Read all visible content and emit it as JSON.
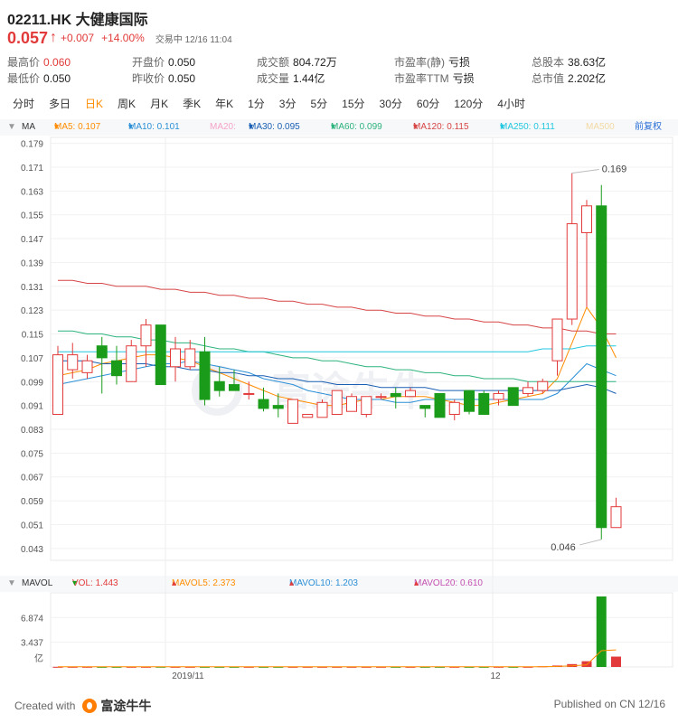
{
  "title": "02211.HK 大健康国际",
  "price": "0.057",
  "change": "+0.007",
  "change_pct": "+14.00%",
  "trade_status": "交易中 12/16 11:04",
  "colors": {
    "up": "#e23a3a",
    "down": "#1a9c1a",
    "active_tab": "#ff8c00"
  },
  "stats": {
    "high_label": "最高价",
    "high": "0.060",
    "open_label": "开盘价",
    "open": "0.050",
    "turnover_label": "成交额",
    "turnover": "804.72万",
    "pe_static_label": "市盈率(静)",
    "pe_static": "亏损",
    "shares_label": "总股本",
    "shares": "38.63亿",
    "low_label": "最低价",
    "low": "0.050",
    "prev_label": "昨收价",
    "prev": "0.050",
    "volume_label": "成交量",
    "volume": "1.44亿",
    "pe_ttm_label": "市盈率TTM",
    "pe_ttm": "亏损",
    "mktcap_label": "总市值",
    "mktcap": "2.202亿"
  },
  "tabs": [
    "分时",
    "多日",
    "日K",
    "周K",
    "月K",
    "季K",
    "年K",
    "1分",
    "3分",
    "5分",
    "15分",
    "30分",
    "60分",
    "120分",
    "4小时"
  ],
  "active_tab": "日K",
  "ma_legend": {
    "name": "MA",
    "ma5": "MA5: 0.107",
    "ma10": "MA10: 0.101",
    "ma20": "MA20:",
    "ma30": "MA30: 0.095",
    "ma60": "MA60: 0.099",
    "ma120": "MA120: 0.115",
    "ma250": "MA250: 0.111",
    "ma500": "MA500",
    "adjust": "前复权"
  },
  "vol_legend": {
    "name": "MAVOL",
    "vol": "VOL: 1.443",
    "mavol5": "MAVOL5: 2.373",
    "mavol10": "MAVOL10: 1.203",
    "mavol20": "MAVOL20: 0.610"
  },
  "watermark": "富途牛牛",
  "footer": {
    "created": "Created with",
    "logo_text": "富途牛牛",
    "published": "Published on CN 12/16"
  },
  "chart_data": {
    "type": "candlestick",
    "y_ticks": [
      "0.179",
      "0.171",
      "0.163",
      "0.155",
      "0.147",
      "0.139",
      "0.131",
      "0.123",
      "0.115",
      "0.107",
      "0.099",
      "0.091",
      "0.083",
      "0.075",
      "0.067",
      "0.059",
      "0.051",
      "0.043"
    ],
    "ylim": [
      0.039,
      0.181
    ],
    "x_labels": [
      "2019/11",
      "12"
    ],
    "max_label": "0.169",
    "min_label": "0.046",
    "candles": [
      {
        "o": 0.088,
        "h": 0.111,
        "l": 0.088,
        "c": 0.108
      },
      {
        "o": 0.103,
        "h": 0.112,
        "l": 0.1,
        "c": 0.108
      },
      {
        "o": 0.102,
        "h": 0.108,
        "l": 0.1,
        "c": 0.106
      },
      {
        "o": 0.111,
        "h": 0.114,
        "l": 0.095,
        "c": 0.107
      },
      {
        "o": 0.106,
        "h": 0.111,
        "l": 0.098,
        "c": 0.101
      },
      {
        "o": 0.099,
        "h": 0.113,
        "l": 0.099,
        "c": 0.111
      },
      {
        "o": 0.111,
        "h": 0.12,
        "l": 0.104,
        "c": 0.118
      },
      {
        "o": 0.118,
        "h": 0.118,
        "l": 0.098,
        "c": 0.098
      },
      {
        "o": 0.104,
        "h": 0.114,
        "l": 0.099,
        "c": 0.11
      },
      {
        "o": 0.104,
        "h": 0.113,
        "l": 0.103,
        "c": 0.11
      },
      {
        "o": 0.109,
        "h": 0.114,
        "l": 0.091,
        "c": 0.093
      },
      {
        "o": 0.099,
        "h": 0.104,
        "l": 0.094,
        "c": 0.096
      },
      {
        "o": 0.098,
        "h": 0.103,
        "l": 0.096,
        "c": 0.096
      },
      {
        "o": 0.095,
        "h": 0.099,
        "l": 0.093,
        "c": 0.095
      },
      {
        "o": 0.093,
        "h": 0.097,
        "l": 0.089,
        "c": 0.09
      },
      {
        "o": 0.091,
        "h": 0.095,
        "l": 0.087,
        "c": 0.09
      },
      {
        "o": 0.085,
        "h": 0.093,
        "l": 0.085,
        "c": 0.093
      },
      {
        "o": 0.087,
        "h": 0.087,
        "l": 0.087,
        "c": 0.088
      },
      {
        "o": 0.087,
        "h": 0.093,
        "l": 0.087,
        "c": 0.092
      },
      {
        "o": 0.088,
        "h": 0.096,
        "l": 0.088,
        "c": 0.096
      },
      {
        "o": 0.089,
        "h": 0.095,
        "l": 0.089,
        "c": 0.094
      },
      {
        "o": 0.088,
        "h": 0.094,
        "l": 0.087,
        "c": 0.094
      },
      {
        "o": 0.094,
        "h": 0.095,
        "l": 0.093,
        "c": 0.094
      },
      {
        "o": 0.095,
        "h": 0.097,
        "l": 0.09,
        "c": 0.094
      },
      {
        "o": 0.094,
        "h": 0.097,
        "l": 0.094,
        "c": 0.096
      },
      {
        "o": 0.091,
        "h": 0.091,
        "l": 0.087,
        "c": 0.09
      },
      {
        "o": 0.095,
        "h": 0.095,
        "l": 0.087,
        "c": 0.087
      },
      {
        "o": 0.088,
        "h": 0.093,
        "l": 0.086,
        "c": 0.092
      },
      {
        "o": 0.096,
        "h": 0.096,
        "l": 0.088,
        "c": 0.089
      },
      {
        "o": 0.095,
        "h": 0.096,
        "l": 0.088,
        "c": 0.088
      },
      {
        "o": 0.093,
        "h": 0.096,
        "l": 0.091,
        "c": 0.095
      },
      {
        "o": 0.097,
        "h": 0.097,
        "l": 0.091,
        "c": 0.091
      },
      {
        "o": 0.095,
        "h": 0.099,
        "l": 0.094,
        "c": 0.097
      },
      {
        "o": 0.096,
        "h": 0.1,
        "l": 0.095,
        "c": 0.099
      },
      {
        "o": 0.106,
        "h": 0.12,
        "l": 0.101,
        "c": 0.12
      },
      {
        "o": 0.12,
        "h": 0.169,
        "l": 0.118,
        "c": 0.152
      },
      {
        "o": 0.149,
        "h": 0.16,
        "l": 0.124,
        "c": 0.158
      },
      {
        "o": 0.158,
        "h": 0.165,
        "l": 0.046,
        "c": 0.05
      },
      {
        "o": 0.05,
        "h": 0.06,
        "l": 0.05,
        "c": 0.057
      }
    ],
    "ma_series": [
      {
        "name": "MA5",
        "color": "#ff8c00",
        "values": [
          0.101,
          0.102,
          0.103,
          0.105,
          0.106,
          0.107,
          0.108,
          0.108,
          0.107,
          0.106,
          0.104,
          0.102,
          0.1,
          0.098,
          0.096,
          0.094,
          0.093,
          0.092,
          0.091,
          0.091,
          0.092,
          0.093,
          0.093,
          0.094,
          0.094,
          0.094,
          0.093,
          0.092,
          0.091,
          0.091,
          0.092,
          0.093,
          0.094,
          0.095,
          0.1,
          0.112,
          0.124,
          0.117,
          0.107
        ]
      },
      {
        "name": "MA10",
        "color": "#2b8fd6",
        "values": [
          0.098,
          0.099,
          0.1,
          0.101,
          0.102,
          0.103,
          0.104,
          0.105,
          0.105,
          0.106,
          0.105,
          0.104,
          0.103,
          0.102,
          0.1,
          0.099,
          0.098,
          0.096,
          0.095,
          0.094,
          0.093,
          0.093,
          0.093,
          0.092,
          0.092,
          0.093,
          0.093,
          0.093,
          0.093,
          0.093,
          0.093,
          0.093,
          0.093,
          0.093,
          0.095,
          0.1,
          0.105,
          0.103,
          0.101
        ]
      },
      {
        "name": "MA30",
        "color": "#1a5fb4",
        "values": [
          0.106,
          0.106,
          0.106,
          0.105,
          0.105,
          0.105,
          0.105,
          0.104,
          0.104,
          0.103,
          0.103,
          0.102,
          0.102,
          0.101,
          0.101,
          0.1,
          0.1,
          0.099,
          0.099,
          0.098,
          0.098,
          0.098,
          0.097,
          0.097,
          0.097,
          0.097,
          0.096,
          0.096,
          0.096,
          0.096,
          0.096,
          0.096,
          0.096,
          0.096,
          0.096,
          0.097,
          0.098,
          0.097,
          0.095
        ]
      },
      {
        "name": "MA60",
        "color": "#2db37d",
        "values": [
          0.116,
          0.116,
          0.115,
          0.115,
          0.114,
          0.114,
          0.113,
          0.113,
          0.112,
          0.112,
          0.111,
          0.11,
          0.11,
          0.109,
          0.109,
          0.108,
          0.107,
          0.107,
          0.106,
          0.106,
          0.105,
          0.104,
          0.104,
          0.103,
          0.103,
          0.102,
          0.102,
          0.101,
          0.101,
          0.1,
          0.1,
          0.1,
          0.099,
          0.099,
          0.099,
          0.099,
          0.099,
          0.099,
          0.099
        ]
      },
      {
        "name": "MA120",
        "color": "#d64545",
        "values": [
          0.133,
          0.133,
          0.132,
          0.132,
          0.131,
          0.131,
          0.131,
          0.13,
          0.13,
          0.129,
          0.129,
          0.128,
          0.128,
          0.127,
          0.127,
          0.126,
          0.126,
          0.125,
          0.125,
          0.124,
          0.124,
          0.123,
          0.123,
          0.122,
          0.122,
          0.121,
          0.121,
          0.12,
          0.12,
          0.119,
          0.119,
          0.118,
          0.118,
          0.117,
          0.117,
          0.116,
          0.116,
          0.115,
          0.115
        ]
      },
      {
        "name": "MA250",
        "color": "#22c7e0",
        "values": [
          0.109,
          0.109,
          0.109,
          0.109,
          0.109,
          0.109,
          0.109,
          0.109,
          0.109,
          0.109,
          0.109,
          0.109,
          0.109,
          0.109,
          0.109,
          0.109,
          0.109,
          0.109,
          0.109,
          0.109,
          0.109,
          0.109,
          0.109,
          0.109,
          0.109,
          0.109,
          0.109,
          0.109,
          0.109,
          0.109,
          0.109,
          0.109,
          0.109,
          0.11,
          0.11,
          0.11,
          0.111,
          0.111,
          0.111
        ]
      }
    ],
    "volume": {
      "y_ticks": [
        "6.874",
        "3.437",
        "亿"
      ],
      "ylim": [
        0,
        10.3
      ],
      "values": [
        0.02,
        0.02,
        0.02,
        0.02,
        0.02,
        0.02,
        0.02,
        0.03,
        0.02,
        0.02,
        0.02,
        0.02,
        0.02,
        0.02,
        0.02,
        0.02,
        0.02,
        0.02,
        0.02,
        0.02,
        0.02,
        0.02,
        0.02,
        0.02,
        0.02,
        0.02,
        0.02,
        0.02,
        0.02,
        0.02,
        0.02,
        0.02,
        0.02,
        0.1,
        0.2,
        0.4,
        0.8,
        9.8,
        1.44
      ],
      "mavol5": [
        0.02,
        0.02,
        0.02,
        0.02,
        0.02,
        0.02,
        0.02,
        0.02,
        0.02,
        0.02,
        0.02,
        0.02,
        0.02,
        0.02,
        0.02,
        0.02,
        0.02,
        0.02,
        0.02,
        0.02,
        0.02,
        0.02,
        0.02,
        0.02,
        0.02,
        0.02,
        0.02,
        0.02,
        0.02,
        0.02,
        0.02,
        0.02,
        0.03,
        0.04,
        0.07,
        0.15,
        0.3,
        2.26,
        2.37
      ]
    }
  }
}
